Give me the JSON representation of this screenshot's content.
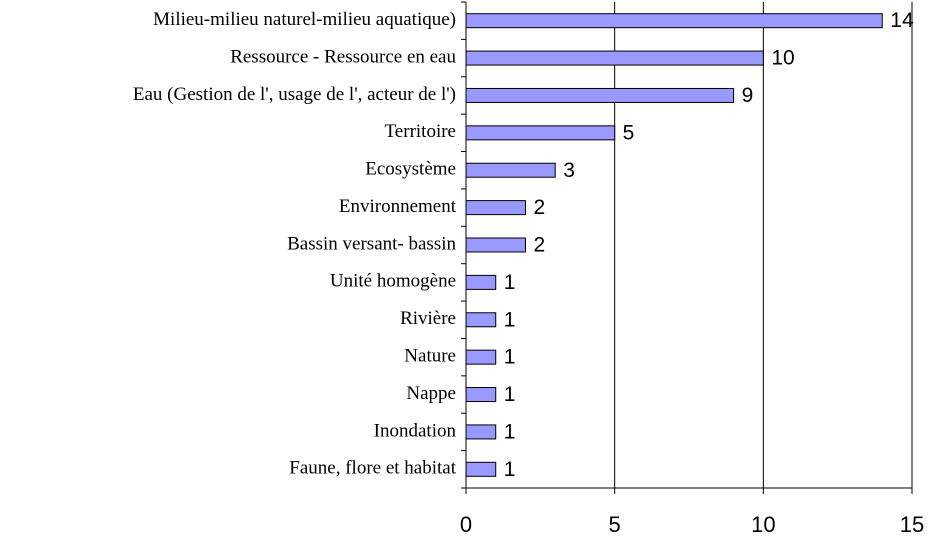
{
  "chart_data": {
    "type": "bar",
    "orientation": "horizontal",
    "categories": [
      "Milieu-milieu naturel-milieu aquatique)",
      "Ressource - Ressource en eau",
      "Eau (Gestion de l', usage de l', acteur de l')",
      "Territoire",
      "Ecosystème",
      "Environnement",
      "Bassin versant- bassin",
      "Unité homogène",
      "Rivière",
      "Nature",
      "Nappe",
      "Inondation",
      "Faune, flore et habitat"
    ],
    "values": [
      14,
      10,
      9,
      5,
      3,
      2,
      2,
      1,
      1,
      1,
      1,
      1,
      1
    ],
    "color": "#9999ff",
    "xlim": [
      0,
      15
    ],
    "xticks": [
      0,
      5,
      10,
      15
    ],
    "grid": true
  }
}
